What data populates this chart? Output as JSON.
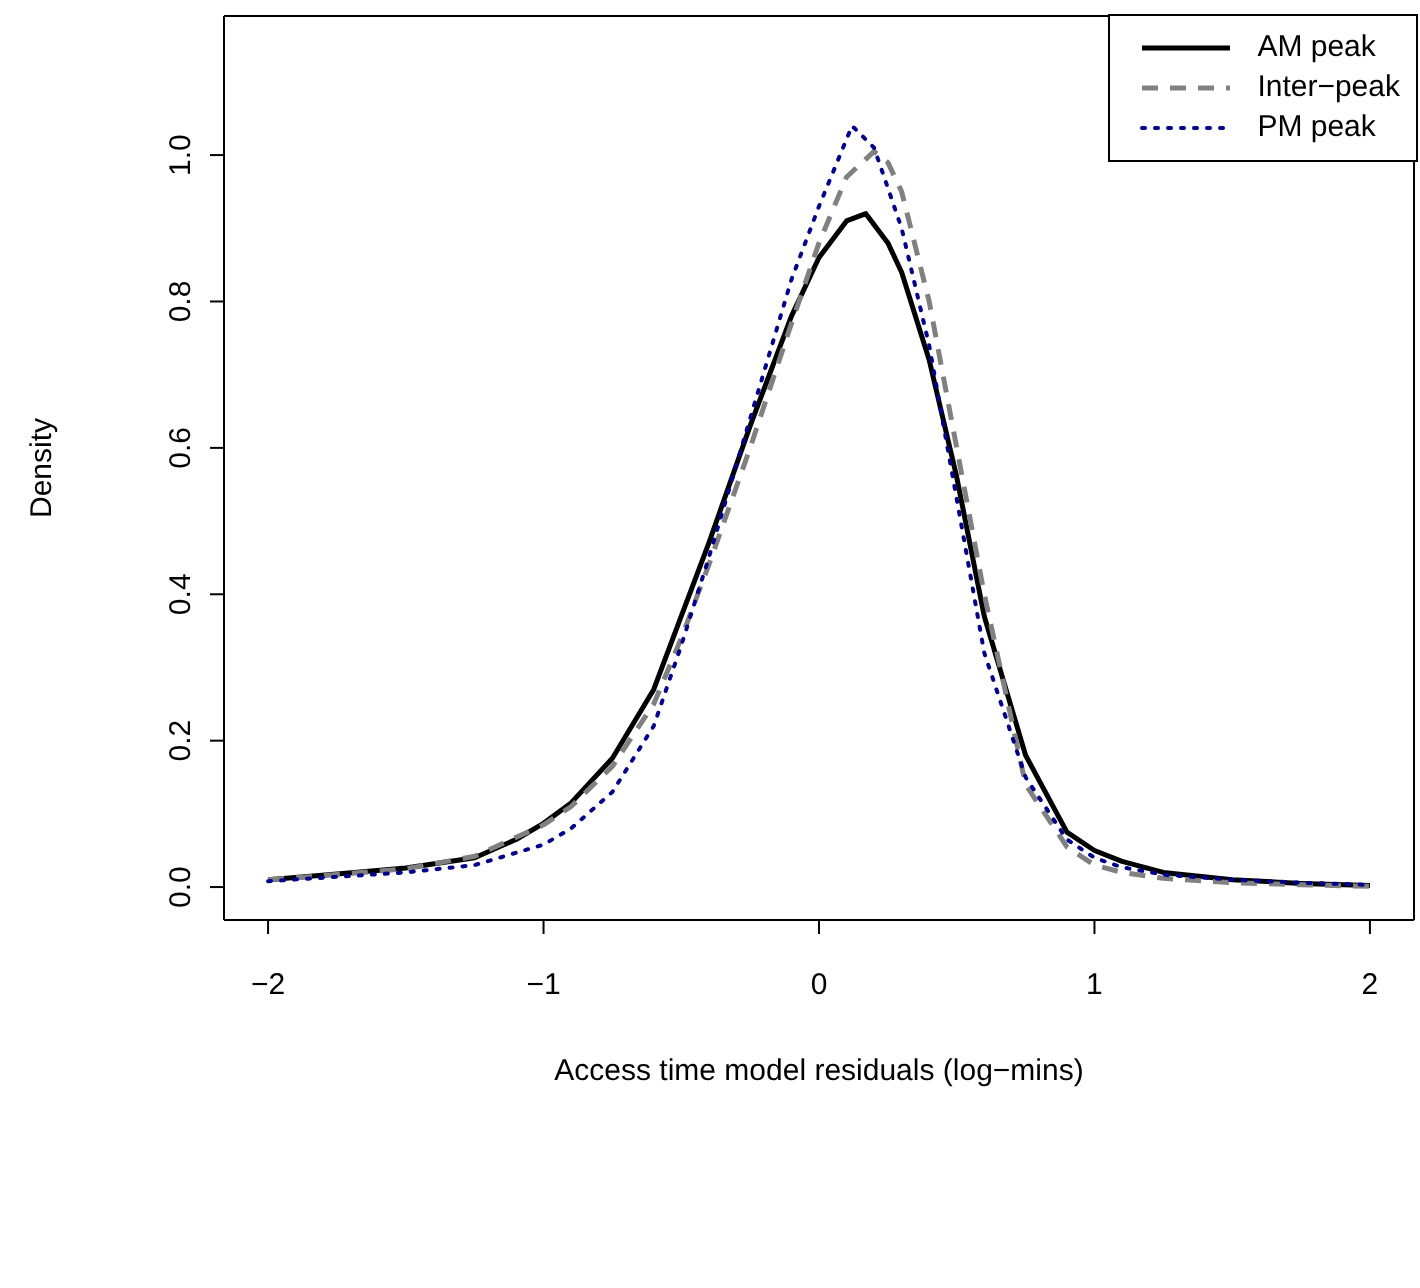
{
  "chart_data": {
    "type": "line",
    "xlabel": "Access time model residuals (log−mins)",
    "ylabel": "Density",
    "xlim": [
      -2.16,
      2.16
    ],
    "ylim": [
      -0.045,
      1.19
    ],
    "xticks": [
      {
        "value": -2,
        "label": "−2"
      },
      {
        "value": -1,
        "label": "−1"
      },
      0,
      1,
      2
    ],
    "yticks": [
      {
        "value": 0,
        "label": "0.0"
      },
      {
        "value": 0.2,
        "label": "0.2"
      },
      {
        "value": 0.4,
        "label": "0.4"
      },
      {
        "value": 0.6,
        "label": "0.6"
      },
      {
        "value": 0.8,
        "label": "0.8"
      },
      {
        "value": 1,
        "label": "1.0"
      }
    ],
    "grid": false,
    "legend": "top right",
    "marker": "none",
    "series": [
      {
        "name": "AM peak",
        "color": "#000000",
        "line_style": "solid",
        "x": [
          -2,
          -1.75,
          -1.5,
          -1.25,
          -1.1,
          -1,
          -0.9,
          -0.75,
          -0.6,
          -0.5,
          -0.4,
          -0.25,
          -0.1,
          0,
          0.1,
          0.17,
          0.25,
          0.3,
          0.4,
          0.5,
          0.6,
          0.75,
          0.9,
          1,
          1.1,
          1.25,
          1.5,
          1.75,
          2
        ],
        "values": [
          0.01,
          0.018,
          0.026,
          0.04,
          0.065,
          0.087,
          0.115,
          0.176,
          0.27,
          0.37,
          0.47,
          0.63,
          0.78,
          0.86,
          0.91,
          0.92,
          0.88,
          0.84,
          0.72,
          0.56,
          0.37,
          0.18,
          0.075,
          0.05,
          0.035,
          0.02,
          0.01,
          0.005,
          0.002
        ]
      },
      {
        "name": "Inter−peak",
        "color": "#808080",
        "line_style": "dashed",
        "x": [
          -2,
          -1.75,
          -1.5,
          -1.25,
          -1,
          -0.9,
          -0.75,
          -0.6,
          -0.5,
          -0.4,
          -0.25,
          -0.1,
          0,
          0.1,
          0.2,
          0.25,
          0.3,
          0.4,
          0.5,
          0.6,
          0.75,
          0.9,
          1,
          1.1,
          1.25,
          1.5,
          1.75,
          2
        ],
        "values": [
          0.01,
          0.017,
          0.025,
          0.042,
          0.085,
          0.11,
          0.165,
          0.25,
          0.34,
          0.44,
          0.6,
          0.77,
          0.88,
          0.97,
          1.005,
          0.99,
          0.95,
          0.8,
          0.6,
          0.4,
          0.14,
          0.055,
          0.03,
          0.02,
          0.012,
          0.006,
          0.003,
          0.001
        ]
      },
      {
        "name": "PM peak",
        "color": "#00008b",
        "line_style": "dotted",
        "x": [
          -2,
          -1.75,
          -1.5,
          -1.25,
          -1,
          -0.9,
          -0.75,
          -0.6,
          -0.5,
          -0.4,
          -0.25,
          -0.1,
          0,
          0.12,
          0.2,
          0.3,
          0.4,
          0.5,
          0.6,
          0.75,
          0.9,
          1,
          1.1,
          1.25,
          1.5,
          1.75,
          2
        ],
        "values": [
          0.008,
          0.014,
          0.02,
          0.03,
          0.058,
          0.08,
          0.13,
          0.22,
          0.33,
          0.45,
          0.64,
          0.83,
          0.93,
          1.04,
          1.01,
          0.9,
          0.74,
          0.53,
          0.32,
          0.15,
          0.065,
          0.04,
          0.027,
          0.017,
          0.01,
          0.006,
          0.003
        ]
      }
    ]
  }
}
